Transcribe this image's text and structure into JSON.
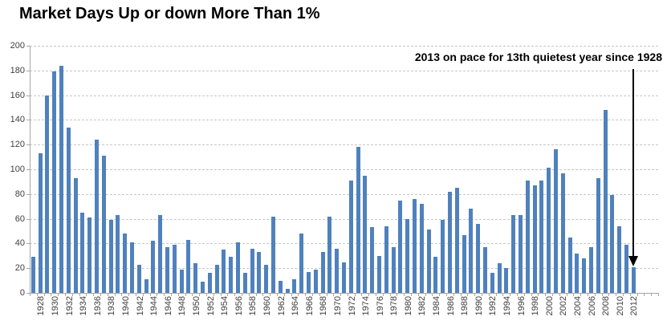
{
  "chart_data": {
    "type": "bar",
    "title": "Market Days Up or down More Than 1%",
    "xlabel": "",
    "ylabel": "",
    "ylim": [
      0,
      200
    ],
    "yticks": [
      0,
      20,
      40,
      60,
      80,
      100,
      120,
      140,
      160,
      180,
      200
    ],
    "x_tick_label_interval": 2,
    "grid": "horizontal-dashed",
    "legend": "none",
    "bar_color": "#4f81bd",
    "categories": [
      1928,
      1929,
      1930,
      1931,
      1932,
      1933,
      1934,
      1935,
      1936,
      1937,
      1938,
      1939,
      1940,
      1941,
      1942,
      1943,
      1944,
      1945,
      1946,
      1947,
      1948,
      1949,
      1950,
      1951,
      1952,
      1953,
      1954,
      1955,
      1956,
      1957,
      1958,
      1959,
      1960,
      1961,
      1962,
      1963,
      1964,
      1965,
      1966,
      1967,
      1968,
      1969,
      1970,
      1971,
      1972,
      1973,
      1974,
      1975,
      1976,
      1977,
      1978,
      1979,
      1980,
      1981,
      1982,
      1983,
      1984,
      1985,
      1986,
      1987,
      1988,
      1989,
      1990,
      1991,
      1992,
      1993,
      1994,
      1995,
      1996,
      1997,
      1998,
      1999,
      2000,
      2001,
      2002,
      2003,
      2004,
      2005,
      2006,
      2007,
      2008,
      2009,
      2010,
      2011,
      2012,
      2013
    ],
    "values": [
      29,
      113,
      160,
      179,
      184,
      134,
      93,
      65,
      61,
      124,
      111,
      59,
      63,
      48,
      41,
      23,
      11,
      42,
      63,
      37,
      39,
      19,
      43,
      24,
      9,
      16,
      23,
      35,
      29,
      41,
      16,
      36,
      33,
      23,
      62,
      10,
      3,
      11,
      48,
      17,
      19,
      33,
      62,
      36,
      25,
      91,
      118,
      95,
      53,
      30,
      54,
      37,
      75,
      60,
      76,
      72,
      51,
      29,
      59,
      82,
      85,
      47,
      68,
      56,
      37,
      16,
      24,
      20,
      63,
      63,
      91,
      87,
      91,
      101,
      116,
      97,
      45,
      32,
      28,
      37,
      93,
      148,
      79,
      54,
      39,
      21
    ],
    "annotation": {
      "text": "2013 on pace for 13th quietest year since 1928",
      "target_year": 2013,
      "arrow_direction": "down"
    }
  }
}
